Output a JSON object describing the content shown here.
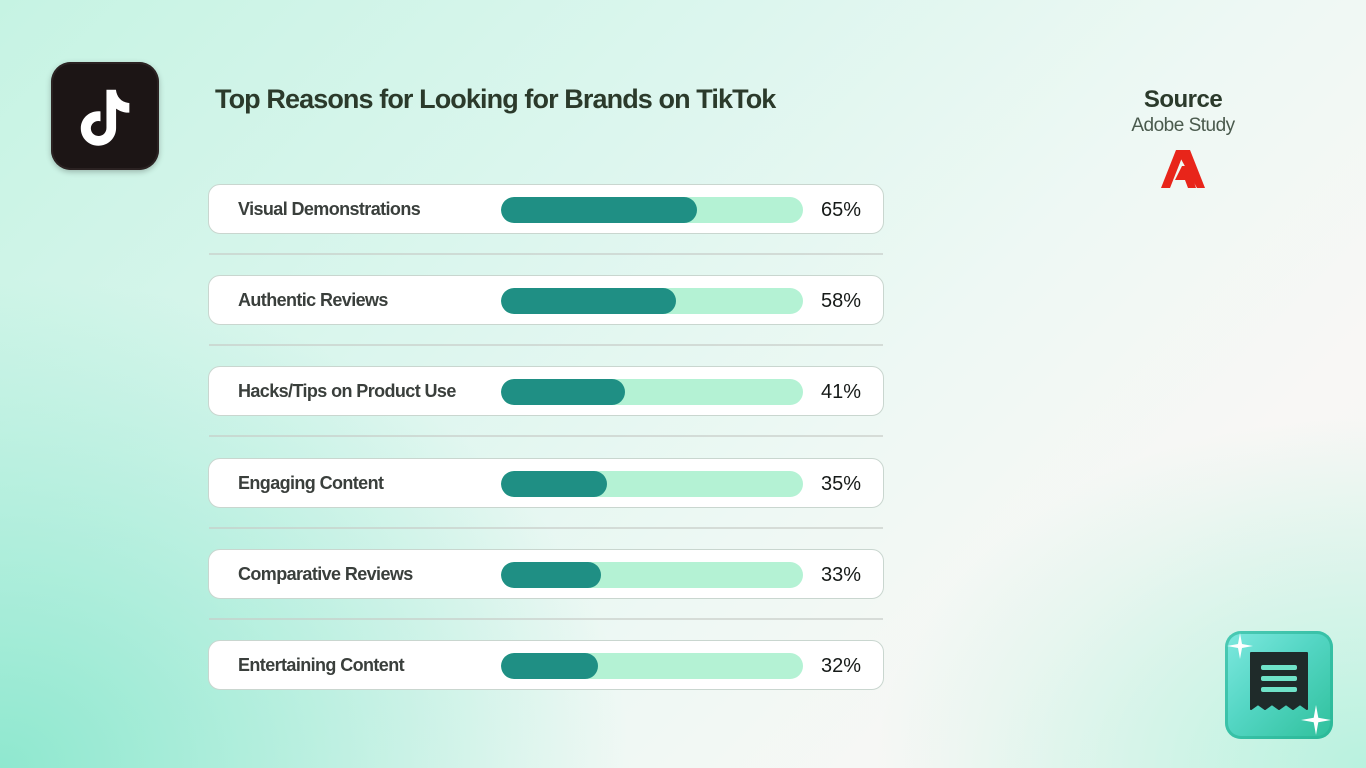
{
  "title": "Top Reasons for Looking for Brands on TikTok",
  "source": {
    "heading": "Source",
    "name": "Adobe Study"
  },
  "icons": {
    "app_logo": "tiktok-icon",
    "source_logo": "adobe-icon",
    "corner_tile": "receipt-icon"
  },
  "colors": {
    "bar_fill": "#1f8f84",
    "bar_track": "#b4f2d4",
    "adobe_red": "#e8251a"
  },
  "chart_data": {
    "type": "bar",
    "orientation": "horizontal",
    "title": "Top Reasons for Looking for Brands on TikTok",
    "categories": [
      "Visual Demonstrations",
      "Authentic Reviews",
      "Hacks/Tips on Product Use",
      "Engaging Content",
      "Comparative Reviews",
      "Entertaining Content"
    ],
    "values": [
      65,
      58,
      41,
      35,
      33,
      32
    ],
    "value_labels": [
      "65%",
      "58%",
      "41%",
      "35%",
      "33%",
      "32%"
    ],
    "unit": "%",
    "xlim": [
      0,
      100
    ],
    "grid": false,
    "legend": "none"
  }
}
